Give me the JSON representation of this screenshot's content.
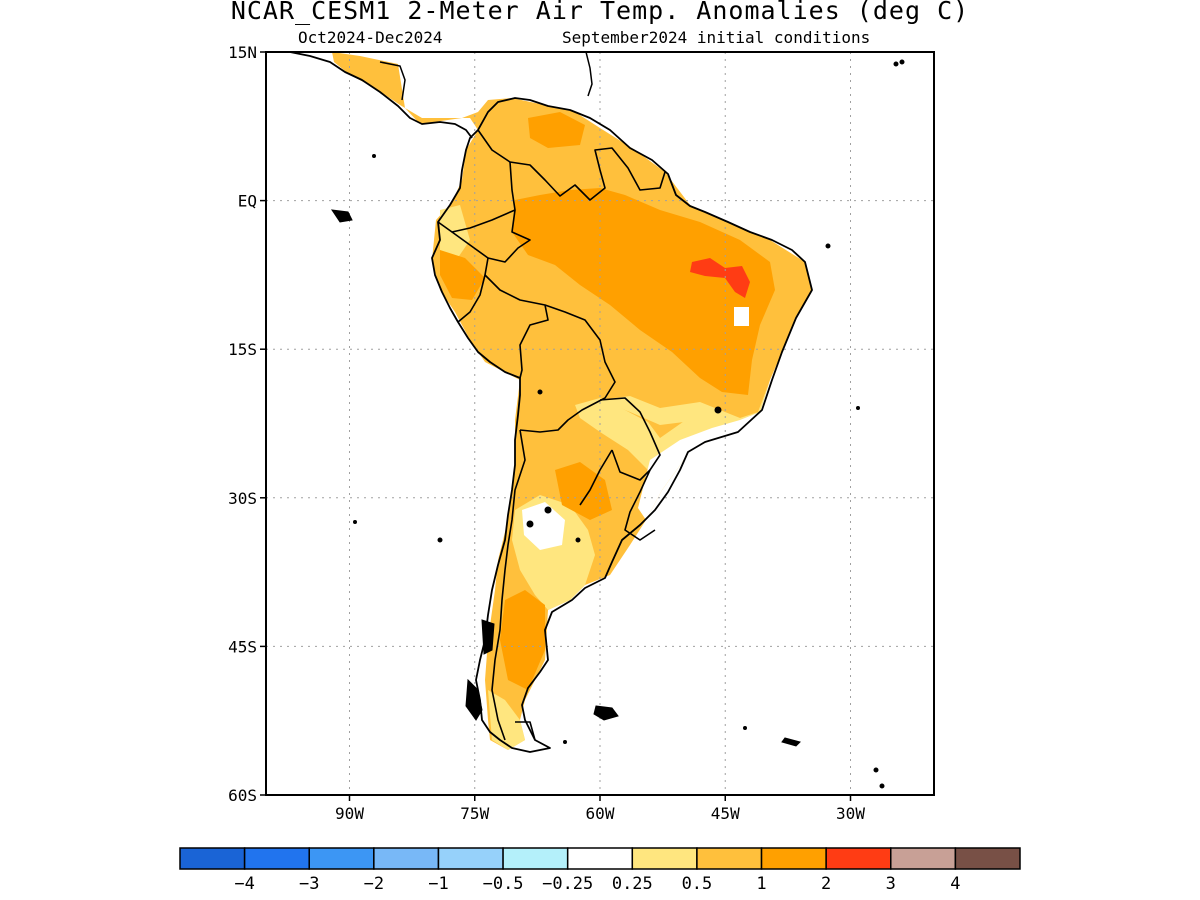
{
  "title": "NCAR_CESM1 2-Meter Air Temp. Anomalies (deg C)",
  "subtitle_left": "Oct2024-Dec2024",
  "subtitle_right": "September2024 initial conditions",
  "map": {
    "lat_labels": [
      "15N",
      "EQ",
      "15S",
      "30S",
      "45S",
      "60S"
    ],
    "lon_labels": [
      "90W",
      "75W",
      "60W",
      "45W",
      "30W"
    ],
    "lat_range": [
      -60,
      15
    ],
    "lon_range": [
      -100,
      -20
    ],
    "grid": true
  },
  "colorbar": {
    "colors": [
      "#1a64d6",
      "#2174ee",
      "#3c96f4",
      "#78b8f7",
      "#96d1fa",
      "#b4f0fa",
      "#ffffff",
      "#ffe67f",
      "#ffc03c",
      "#ffa000",
      "#ff3c14",
      "#c8a096",
      "#785046"
    ],
    "labels": [
      "-4",
      "-3",
      "-2",
      "-1",
      "-0.5",
      "-0.25",
      "0.25",
      "0.5",
      "1",
      "2",
      "3",
      "4"
    ]
  },
  "colors": {
    "anomaly_0_25_to_0_5": "#ffe67f",
    "anomaly_0_5_to_1": "#ffc03c",
    "anomaly_1_to_2": "#ffa000",
    "anomaly_2_to_3": "#ff3c14"
  }
}
